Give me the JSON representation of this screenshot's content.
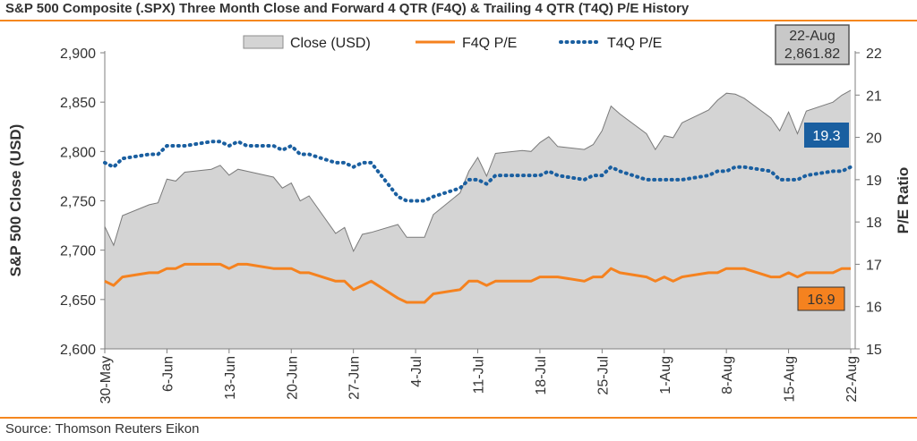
{
  "header": {
    "title": "S&P 500 Composite (.SPX) Three Month Close and Forward 4 QTR (F4Q) & Trailing 4 QTR (T4Q) P/E History"
  },
  "footer": {
    "source": "Source: Thomson Reuters Eikon"
  },
  "colors": {
    "accent": "#f5871f",
    "close_fill": "#d4d4d4",
    "f4q": "#f5821f",
    "t4q": "#1a5fa0"
  },
  "chart_data": {
    "type": "area",
    "xlabel": "",
    "ylabel": "S&P 500 Close (USD)",
    "y2label": "P/E Ratio",
    "ylim": [
      2600,
      2900
    ],
    "y2lim": [
      15,
      22
    ],
    "yticks": [
      "2,600",
      "2,650",
      "2,700",
      "2,750",
      "2,800",
      "2,850",
      "2,900"
    ],
    "y2ticks": [
      "15",
      "16",
      "17",
      "18",
      "19",
      "20",
      "21",
      "22"
    ],
    "grid": false,
    "legend_position": "top",
    "x_tick_labels": [
      "30-May",
      "6-Jun",
      "13-Jun",
      "20-Jun",
      "27-Jun",
      "4-Jul",
      "11-Jul",
      "18-Jul",
      "25-Jul",
      "1-Aug",
      "8-Aug",
      "15-Aug",
      "22-Aug"
    ],
    "x": [
      "2018-05-30",
      "2018-05-31",
      "2018-06-01",
      "2018-06-04",
      "2018-06-05",
      "2018-06-06",
      "2018-06-07",
      "2018-06-08",
      "2018-06-11",
      "2018-06-12",
      "2018-06-13",
      "2018-06-14",
      "2018-06-15",
      "2018-06-18",
      "2018-06-19",
      "2018-06-20",
      "2018-06-21",
      "2018-06-22",
      "2018-06-25",
      "2018-06-26",
      "2018-06-27",
      "2018-06-28",
      "2018-06-29",
      "2018-07-02",
      "2018-07-03",
      "2018-07-05",
      "2018-07-06",
      "2018-07-09",
      "2018-07-10",
      "2018-07-11",
      "2018-07-12",
      "2018-07-13",
      "2018-07-16",
      "2018-07-17",
      "2018-07-18",
      "2018-07-19",
      "2018-07-20",
      "2018-07-23",
      "2018-07-24",
      "2018-07-25",
      "2018-07-26",
      "2018-07-27",
      "2018-07-30",
      "2018-07-31",
      "2018-08-01",
      "2018-08-02",
      "2018-08-03",
      "2018-08-06",
      "2018-08-07",
      "2018-08-08",
      "2018-08-09",
      "2018-08-10",
      "2018-08-13",
      "2018-08-14",
      "2018-08-15",
      "2018-08-16",
      "2018-08-17",
      "2018-08-20",
      "2018-08-21",
      "2018-08-22"
    ],
    "series": [
      {
        "name": "Close (USD)",
        "type": "area",
        "axis": "left",
        "values": [
          2724,
          2705,
          2735,
          2746,
          2748,
          2772,
          2770,
          2779,
          2782,
          2786,
          2776,
          2782,
          2780,
          2774,
          2763,
          2768,
          2750,
          2755,
          2717,
          2723,
          2699,
          2716,
          2718,
          2726,
          2713,
          2713,
          2736,
          2758,
          2780,
          2794,
          2775,
          2798,
          2801,
          2800,
          2809,
          2815,
          2805,
          2802,
          2807,
          2821,
          2846,
          2838,
          2818,
          2802,
          2816,
          2814,
          2829,
          2842,
          2852,
          2859,
          2858,
          2854,
          2834,
          2821,
          2840,
          2818,
          2841,
          2850,
          2857,
          2862
        ]
      },
      {
        "name": "F4Q P/E",
        "type": "line",
        "axis": "right",
        "values": [
          16.6,
          16.5,
          16.7,
          16.8,
          16.8,
          16.9,
          16.9,
          17.0,
          17.0,
          17.0,
          16.9,
          17.0,
          17.0,
          16.9,
          16.9,
          16.9,
          16.8,
          16.8,
          16.6,
          16.6,
          16.4,
          16.5,
          16.6,
          16.2,
          16.1,
          16.1,
          16.3,
          16.4,
          16.6,
          16.6,
          16.5,
          16.6,
          16.6,
          16.6,
          16.7,
          16.7,
          16.7,
          16.6,
          16.7,
          16.7,
          16.9,
          16.8,
          16.7,
          16.6,
          16.7,
          16.6,
          16.7,
          16.8,
          16.8,
          16.9,
          16.9,
          16.9,
          16.7,
          16.7,
          16.8,
          16.7,
          16.8,
          16.8,
          16.9,
          16.9
        ]
      },
      {
        "name": "T4Q P/E",
        "type": "line",
        "style": "dotted",
        "axis": "right",
        "values": [
          19.4,
          19.3,
          19.5,
          19.6,
          19.6,
          19.8,
          19.8,
          19.8,
          19.9,
          19.9,
          19.8,
          19.9,
          19.8,
          19.8,
          19.7,
          19.8,
          19.6,
          19.6,
          19.4,
          19.4,
          19.3,
          19.4,
          19.4,
          18.6,
          18.5,
          18.5,
          18.6,
          18.8,
          19.0,
          19.0,
          18.9,
          19.1,
          19.1,
          19.1,
          19.1,
          19.2,
          19.1,
          19.0,
          19.1,
          19.1,
          19.3,
          19.2,
          19.0,
          19.0,
          19.0,
          19.0,
          19.0,
          19.1,
          19.2,
          19.2,
          19.3,
          19.3,
          19.2,
          19.0,
          19.0,
          19.0,
          19.1,
          19.2,
          19.2,
          19.3
        ]
      }
    ],
    "callouts": {
      "close_date": "22-Aug",
      "close_value": "2,861.82",
      "t4q_last": "19.3",
      "f4q_last": "16.9"
    }
  }
}
